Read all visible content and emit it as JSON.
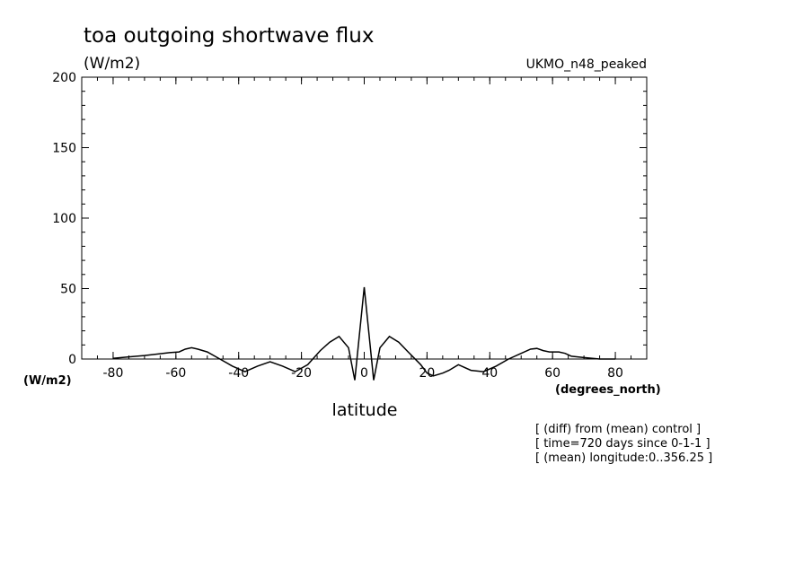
{
  "chart_data": {
    "type": "line",
    "title": "toa outgoing shortwave flux",
    "units": "(W/m2)",
    "model_label": "UKMO_n48_peaked",
    "xlabel": "latitude",
    "x_units": "(degrees_north)",
    "y_units": "(W/m2)",
    "xlim": [
      -90,
      90
    ],
    "ylim": [
      0,
      200
    ],
    "x_ticks": [
      -80,
      -60,
      -40,
      -20,
      0,
      20,
      40,
      60,
      80
    ],
    "x_tick_labels": [
      "-80",
      "-60",
      "-40",
      "-20",
      "0",
      "20",
      "40",
      "60",
      "80"
    ],
    "y_ticks": [
      0,
      50,
      100,
      150,
      200
    ],
    "y_tick_labels": [
      "0",
      "50",
      "100",
      "150",
      "200"
    ],
    "grid": false,
    "series": [
      {
        "x": [
          -80,
          -75,
          -70,
          -66,
          -62,
          -59,
          -57,
          -55,
          -53,
          -50,
          -46,
          -42,
          -38,
          -34,
          -30,
          -26,
          -22,
          -18,
          -14,
          -11,
          -8,
          -5,
          -3,
          0,
          3,
          5,
          8,
          11,
          14,
          18,
          20,
          22,
          25,
          27,
          30,
          34,
          38,
          42,
          46,
          50,
          53,
          55,
          57,
          59,
          60,
          61,
          62,
          64,
          66,
          70,
          75,
          80
        ],
        "y": [
          0.5,
          1.5,
          2.5,
          3.5,
          4.5,
          5,
          7,
          8,
          7,
          5,
          0,
          -5,
          -9,
          -5,
          -2,
          -5,
          -9,
          -4,
          6,
          12,
          16,
          8,
          -15,
          51,
          -15,
          8,
          16,
          12,
          5,
          -4,
          -10,
          -12,
          -10,
          -8,
          -4,
          -8,
          -9,
          -5,
          0,
          4,
          7,
          7.5,
          6,
          5,
          5,
          5,
          5,
          4,
          2,
          1,
          0,
          0
        ]
      }
    ]
  },
  "notes": [
    "[ (diff) from (mean) control ]",
    "[ time=720 days since 0-1-1 ]",
    "[ (mean) longitude:0..356.25 ]"
  ]
}
